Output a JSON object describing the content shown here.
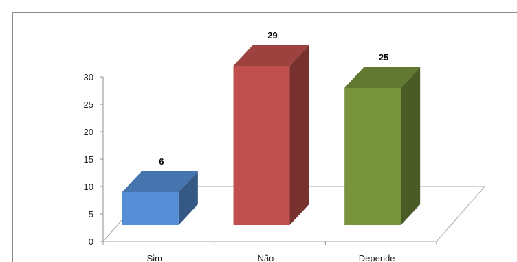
{
  "chart_data": {
    "type": "bar",
    "categories": [
      "Sim",
      "Não",
      "Depende"
    ],
    "values": [
      6,
      29,
      25
    ],
    "data_labels": [
      "6",
      "29",
      "25"
    ],
    "ylim": [
      0,
      30
    ],
    "yticks": [
      "0",
      "5",
      "10",
      "15",
      "20",
      "25",
      "30"
    ],
    "colors": [
      "#558ed5",
      "#c0504d",
      "#77933c"
    ],
    "grid": false,
    "legend": "none",
    "style": "3d-column"
  }
}
